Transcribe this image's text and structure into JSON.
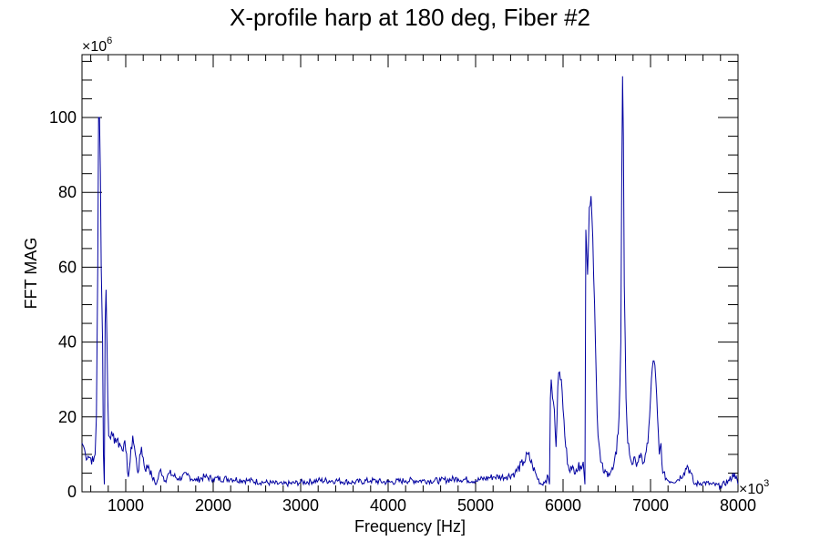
{
  "chart_data": {
    "type": "line",
    "title": "X-profile harp at 180 deg, Fiber #2",
    "xlabel": "Frequency [Hz]",
    "ylabel": "FFT MAG",
    "x_exponent_label": "×10",
    "x_exponent": "3",
    "y_exponent_label": "×10",
    "y_exponent": "6",
    "xlim": [
      500,
      8000
    ],
    "ylim": [
      0,
      116.8
    ],
    "x_ticks": [
      1000,
      2000,
      3000,
      4000,
      5000,
      6000,
      7000,
      8000
    ],
    "x_tick_labels": [
      "1000",
      "2000",
      "3000",
      "4000",
      "5000",
      "6000",
      "7000",
      "8000"
    ],
    "y_ticks": [
      0,
      20,
      40,
      60,
      80,
      100
    ],
    "y_tick_labels": [
      "0",
      "20",
      "40",
      "60",
      "80",
      "100"
    ],
    "grid": false,
    "line_color": "#0000a0",
    "series": [
      {
        "name": "FFT MAG",
        "points": [
          [
            500,
            13
          ],
          [
            520,
            12
          ],
          [
            540,
            10
          ],
          [
            570,
            9.5
          ],
          [
            600,
            9
          ],
          [
            630,
            8
          ],
          [
            650,
            10
          ],
          [
            665,
            20
          ],
          [
            680,
            60
          ],
          [
            690,
            100
          ],
          [
            700,
            100
          ],
          [
            710,
            85
          ],
          [
            720,
            60
          ],
          [
            735,
            40
          ],
          [
            745,
            10
          ],
          [
            755,
            2
          ],
          [
            765,
            45
          ],
          [
            775,
            54
          ],
          [
            785,
            40
          ],
          [
            795,
            25
          ],
          [
            805,
            15
          ],
          [
            850,
            15
          ],
          [
            900,
            14
          ],
          [
            950,
            12
          ],
          [
            980,
            13
          ],
          [
            1000,
            11
          ],
          [
            1030,
            4
          ],
          [
            1050,
            8
          ],
          [
            1080,
            15
          ],
          [
            1110,
            10
          ],
          [
            1140,
            5
          ],
          [
            1180,
            12
          ],
          [
            1220,
            6
          ],
          [
            1260,
            7
          ],
          [
            1300,
            4
          ],
          [
            1350,
            2
          ],
          [
            1400,
            6
          ],
          [
            1450,
            3
          ],
          [
            1500,
            5
          ],
          [
            1600,
            3.5
          ],
          [
            1700,
            4.5
          ],
          [
            1800,
            3
          ],
          [
            1900,
            4
          ],
          [
            2000,
            3.5
          ],
          [
            2200,
            3.5
          ],
          [
            2400,
            3
          ],
          [
            2600,
            2.5
          ],
          [
            2800,
            2
          ],
          [
            3000,
            2.5
          ],
          [
            3200,
            3
          ],
          [
            3400,
            3
          ],
          [
            3600,
            2.5
          ],
          [
            3800,
            3
          ],
          [
            4000,
            2.5
          ],
          [
            4200,
            3
          ],
          [
            4400,
            3
          ],
          [
            4600,
            3
          ],
          [
            4800,
            3.5
          ],
          [
            5000,
            3
          ],
          [
            5200,
            4
          ],
          [
            5350,
            4
          ],
          [
            5450,
            5
          ],
          [
            5550,
            8
          ],
          [
            5600,
            10
          ],
          [
            5650,
            7
          ],
          [
            5700,
            4
          ],
          [
            5750,
            2
          ],
          [
            5800,
            3
          ],
          [
            5830,
            4
          ],
          [
            5845,
            2
          ],
          [
            5855,
            25
          ],
          [
            5865,
            30
          ],
          [
            5880,
            25
          ],
          [
            5900,
            22
          ],
          [
            5920,
            12
          ],
          [
            5940,
            28
          ],
          [
            5960,
            32
          ],
          [
            5980,
            30
          ],
          [
            6000,
            22
          ],
          [
            6030,
            12
          ],
          [
            6060,
            7
          ],
          [
            6100,
            6
          ],
          [
            6150,
            6
          ],
          [
            6200,
            7
          ],
          [
            6230,
            8
          ],
          [
            6250,
            2
          ],
          [
            6260,
            70
          ],
          [
            6280,
            58
          ],
          [
            6300,
            76
          ],
          [
            6320,
            79
          ],
          [
            6340,
            68
          ],
          [
            6360,
            50
          ],
          [
            6380,
            30
          ],
          [
            6400,
            15
          ],
          [
            6430,
            8
          ],
          [
            6470,
            5
          ],
          [
            6520,
            5
          ],
          [
            6570,
            6
          ],
          [
            6610,
            10
          ],
          [
            6640,
            20
          ],
          [
            6660,
            40
          ],
          [
            6670,
            80
          ],
          [
            6680,
            111
          ],
          [
            6690,
            95
          ],
          [
            6700,
            55
          ],
          [
            6720,
            25
          ],
          [
            6740,
            13
          ],
          [
            6780,
            8
          ],
          [
            6830,
            8
          ],
          [
            6880,
            9
          ],
          [
            6930,
            8
          ],
          [
            6970,
            13
          ],
          [
            7000,
            25
          ],
          [
            7020,
            33
          ],
          [
            7040,
            35
          ],
          [
            7060,
            30
          ],
          [
            7080,
            20
          ],
          [
            7100,
            10
          ],
          [
            7120,
            13
          ],
          [
            7140,
            5
          ],
          [
            7200,
            3
          ],
          [
            7300,
            3
          ],
          [
            7380,
            5
          ],
          [
            7420,
            7
          ],
          [
            7460,
            5
          ],
          [
            7500,
            2
          ],
          [
            7600,
            2.5
          ],
          [
            7700,
            2
          ],
          [
            7800,
            1.5
          ],
          [
            7900,
            3
          ],
          [
            7960,
            5
          ],
          [
            8000,
            2
          ]
        ]
      }
    ]
  }
}
